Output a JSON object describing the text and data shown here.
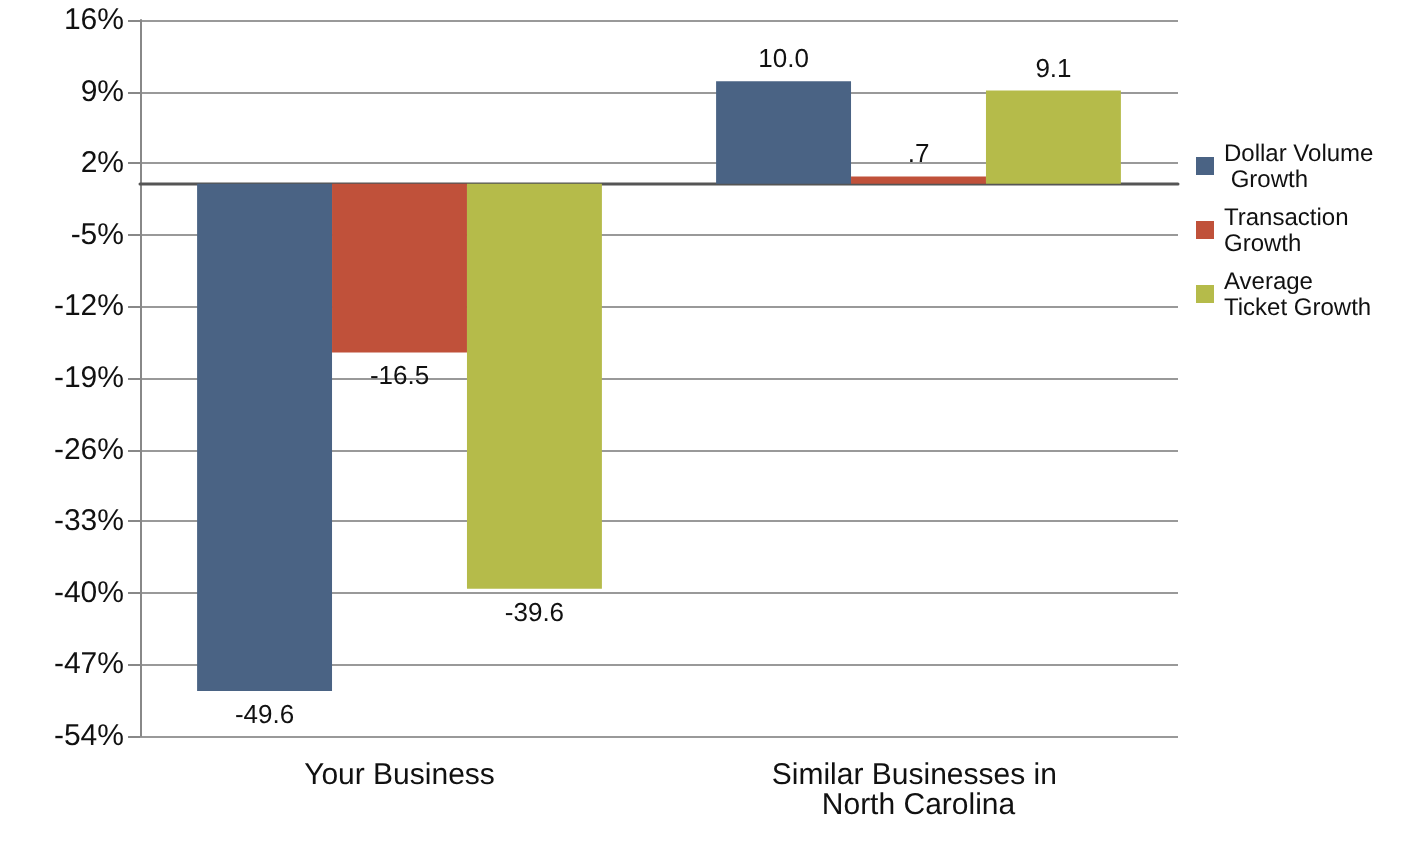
{
  "chart_data": {
    "type": "bar",
    "categories": [
      "Your Business",
      "Similar Businesses in North Carolina"
    ],
    "series": [
      {
        "name": "Dollar Volume Growth",
        "color": "#4a6384",
        "values": [
          -49.6,
          10.0
        ],
        "value_labels": [
          "-49.6",
          "10.0"
        ]
      },
      {
        "name": "Transaction Growth",
        "color": "#c0513a",
        "values": [
          -16.5,
          0.7
        ],
        "value_labels": [
          "-16.5",
          ".7"
        ]
      },
      {
        "name": "Average Ticket Growth",
        "color": "#b5bb4a",
        "values": [
          -39.6,
          9.1
        ],
        "value_labels": [
          "-39.6",
          "9.1"
        ]
      }
    ],
    "ylim": [
      -54,
      16
    ],
    "yticks": [
      {
        "value": -54,
        "label": "-54%"
      },
      {
        "value": -47,
        "label": "-47%"
      },
      {
        "value": -40,
        "label": "-40%"
      },
      {
        "value": -33,
        "label": "-33%"
      },
      {
        "value": -26,
        "label": "-26%"
      },
      {
        "value": -19,
        "label": "-19%"
      },
      {
        "value": -12,
        "label": "-12%"
      },
      {
        "value": -5,
        "label": "-5%"
      },
      {
        "value": 2,
        "label": "2%"
      },
      {
        "value": 9,
        "label": "9%"
      },
      {
        "value": 16,
        "label": "16%"
      }
    ],
    "grid": "y",
    "legend": "right"
  }
}
